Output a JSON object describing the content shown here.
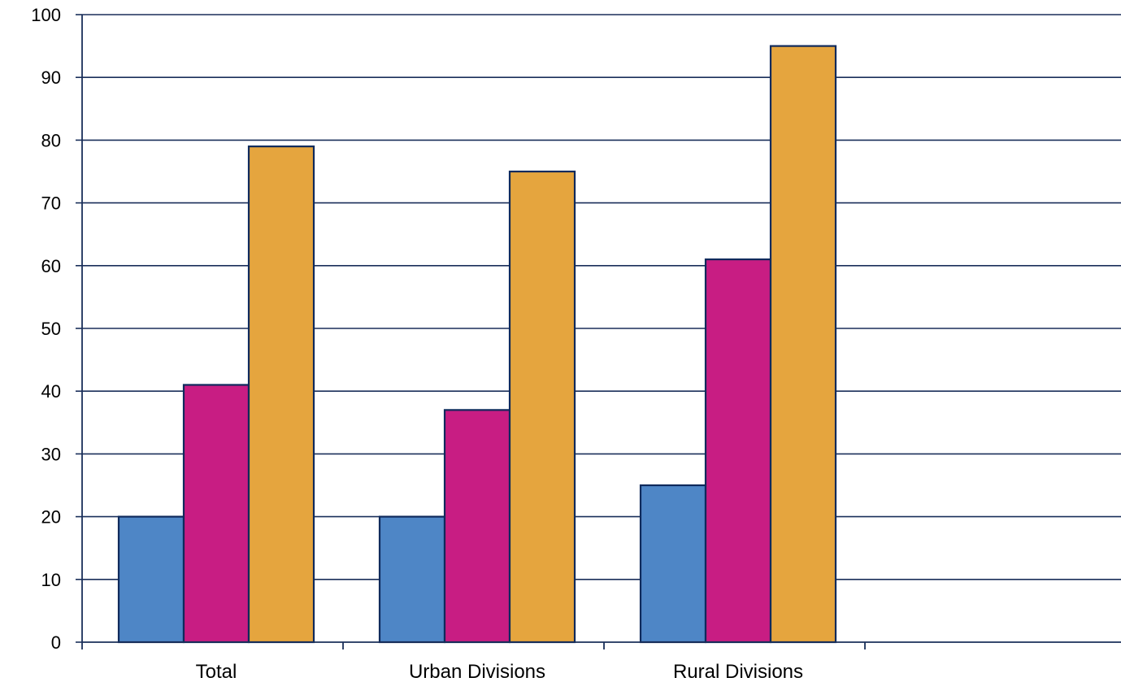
{
  "chart_data": {
    "type": "bar",
    "title": "",
    "xlabel": "",
    "ylabel": "",
    "categories": [
      "Total",
      "Urban Divisions",
      "Rural Divisions",
      ""
    ],
    "series": [
      {
        "values": [
          20,
          20,
          25,
          null
        ],
        "color": "#4e86c6"
      },
      {
        "values": [
          41,
          37,
          61,
          null
        ],
        "color": "#c81d83"
      },
      {
        "values": [
          79,
          75,
          95,
          null
        ],
        "color": "#e5a53e"
      }
    ],
    "ylim": [
      0,
      100
    ],
    "yticks": [
      "0",
      "10",
      "20",
      "30",
      "40",
      "50",
      "60",
      "70",
      "80",
      "90",
      "100"
    ],
    "grid": true,
    "legend": "none",
    "axis_color": "#1a2f5a",
    "bar_outline_color": "#0f2a5c"
  }
}
